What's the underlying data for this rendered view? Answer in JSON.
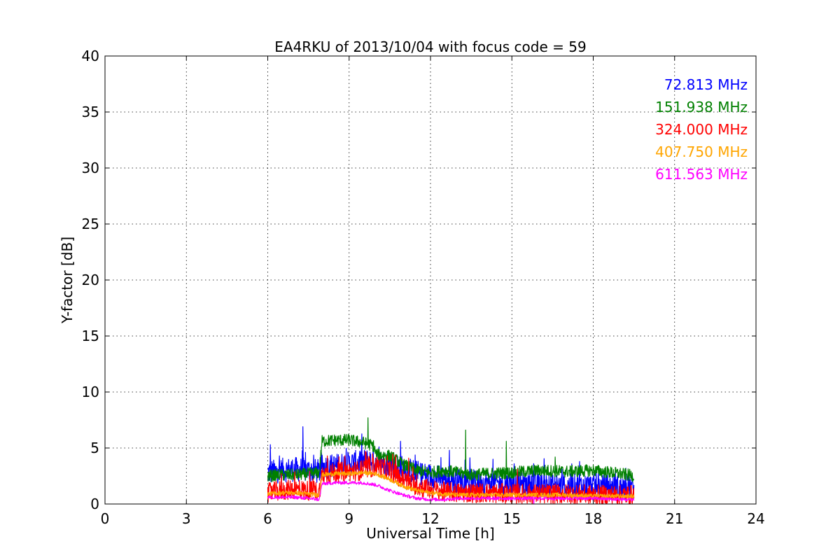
{
  "chart_data": {
    "type": "line",
    "title": "EA4RKU of 2013/10/04 with focus code = 59",
    "xlabel": "Universal Time [h]",
    "ylabel": "Y-factor [dB]",
    "xlim": [
      0,
      24
    ],
    "ylim": [
      0,
      40
    ],
    "xticks": [
      0,
      3,
      6,
      9,
      12,
      15,
      18,
      21,
      24
    ],
    "yticks": [
      0,
      5,
      10,
      15,
      20,
      25,
      30,
      35,
      40
    ],
    "grid": true,
    "legend_position": "top-right",
    "series": [
      {
        "name": "72.813 MHz",
        "color": "#0000ff",
        "x": [
          6.0,
          6.5,
          7.0,
          7.5,
          7.9,
          8.0,
          8.5,
          9.0,
          9.5,
          10.0,
          10.5,
          11.0,
          11.5,
          12.0,
          12.5,
          13.0,
          13.5,
          14.0,
          15.0,
          16.0,
          17.0,
          18.0,
          19.0,
          19.5
        ],
        "y": [
          2.8,
          3.0,
          3.1,
          3.0,
          2.9,
          3.3,
          3.4,
          3.6,
          3.8,
          3.9,
          3.6,
          3.2,
          2.8,
          2.5,
          2.3,
          2.1,
          2.0,
          1.9,
          1.8,
          1.7,
          1.6,
          1.6,
          1.5,
          1.5
        ],
        "spikes": [
          [
            6.1,
            5.3
          ],
          [
            7.3,
            6.9
          ],
          [
            8.6,
            4.4
          ],
          [
            10.1,
            5.1
          ],
          [
            10.9,
            5.6
          ],
          [
            12.7,
            4.8
          ],
          [
            14.3,
            4.0
          ],
          [
            15.8,
            3.6
          ],
          [
            17.5,
            3.8
          ],
          [
            19.2,
            3.2
          ]
        ]
      },
      {
        "name": "151.938 MHz",
        "color": "#008000",
        "x": [
          6.0,
          6.5,
          7.0,
          7.5,
          7.9,
          8.0,
          8.5,
          9.0,
          9.5,
          9.9,
          10.0,
          10.5,
          11.0,
          11.5,
          12.0,
          12.5,
          13.0,
          13.5,
          14.0,
          15.0,
          16.0,
          17.0,
          18.0,
          19.0,
          19.5
        ],
        "y": [
          2.5,
          2.6,
          2.6,
          2.7,
          2.8,
          5.6,
          5.7,
          5.7,
          5.5,
          5.2,
          4.4,
          4.3,
          3.5,
          3.0,
          2.8,
          3.0,
          2.8,
          2.6,
          2.7,
          2.8,
          3.0,
          2.9,
          3.0,
          2.7,
          2.5
        ],
        "spikes": [
          [
            9.7,
            7.7
          ],
          [
            13.3,
            6.6
          ],
          [
            14.8,
            5.6
          ],
          [
            16.6,
            4.2
          ]
        ]
      },
      {
        "name": "324.000 MHz",
        "color": "#ff0000",
        "x": [
          6.0,
          6.5,
          7.0,
          7.5,
          7.9,
          8.0,
          8.5,
          9.0,
          9.5,
          10.0,
          10.5,
          11.0,
          11.5,
          12.0,
          12.5,
          13.0,
          14.0,
          15.0,
          16.0,
          17.0,
          18.0,
          19.0,
          19.5
        ],
        "y": [
          1.0,
          1.2,
          1.3,
          1.2,
          1.1,
          2.6,
          2.8,
          2.9,
          3.0,
          3.4,
          3.0,
          2.2,
          1.6,
          1.3,
          1.1,
          1.0,
          1.0,
          0.9,
          0.9,
          0.9,
          0.8,
          0.8,
          0.8
        ],
        "spikes": [
          [
            6.5,
            2.7
          ],
          [
            7.0,
            2.9
          ],
          [
            8.2,
            4.3
          ],
          [
            9.6,
            4.7
          ],
          [
            10.4,
            4.3
          ],
          [
            11.2,
            4.1
          ],
          [
            15.2,
            3.1
          ]
        ]
      },
      {
        "name": "407.750 MHz",
        "color": "#ffa500",
        "x": [
          6.0,
          6.5,
          7.0,
          7.5,
          7.9,
          8.0,
          8.5,
          9.0,
          9.5,
          10.0,
          10.5,
          11.0,
          11.5,
          12.0,
          12.5,
          13.0,
          14.0,
          15.0,
          16.0,
          17.0,
          18.0,
          19.0,
          19.5
        ],
        "y": [
          0.9,
          1.0,
          1.0,
          0.9,
          0.8,
          2.6,
          2.7,
          2.7,
          2.8,
          2.7,
          2.2,
          1.6,
          1.2,
          1.0,
          0.9,
          0.8,
          0.8,
          0.8,
          0.8,
          0.8,
          0.7,
          0.7,
          0.7
        ],
        "spikes": []
      },
      {
        "name": "611.563 MHz",
        "color": "#ff00ff",
        "x": [
          6.0,
          6.5,
          7.0,
          7.5,
          7.9,
          8.0,
          8.5,
          9.0,
          9.5,
          10.0,
          10.5,
          11.0,
          11.5,
          12.0,
          12.5,
          13.0,
          14.0,
          15.0,
          15.8,
          16.0,
          17.0,
          18.0,
          19.0,
          19.5
        ],
        "y": [
          0.6,
          0.6,
          0.6,
          0.5,
          0.4,
          1.8,
          1.9,
          1.9,
          1.9,
          1.7,
          1.2,
          0.8,
          0.5,
          0.4,
          0.4,
          0.5,
          0.5,
          0.5,
          0.5,
          0.5,
          0.5,
          0.5,
          0.4,
          0.4
        ],
        "spikes": [
          [
            15.8,
            -0.5
          ]
        ]
      }
    ]
  }
}
